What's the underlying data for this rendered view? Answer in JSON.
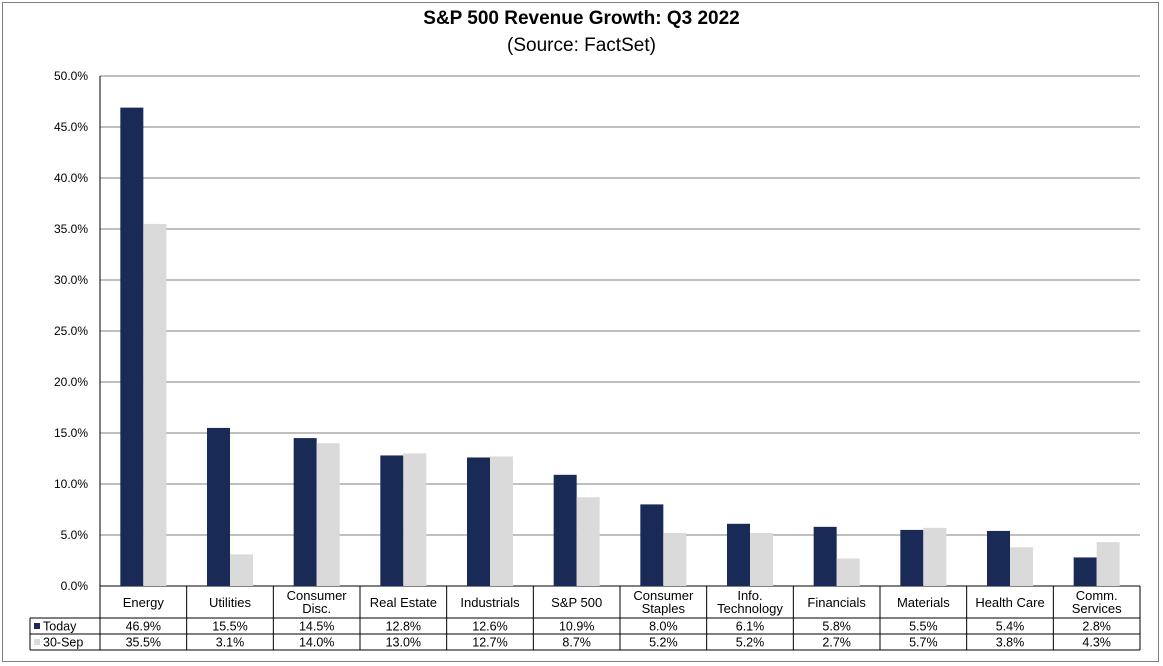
{
  "chart_data": {
    "type": "bar",
    "title": "S&P 500 Revenue Growth: Q3 2022",
    "subtitle": "(Source: FactSet)",
    "categories": [
      [
        "Energy"
      ],
      [
        "Utilities"
      ],
      [
        "Consumer",
        "Disc."
      ],
      [
        "Real Estate"
      ],
      [
        "Industrials"
      ],
      [
        "S&P 500"
      ],
      [
        "Consumer",
        "Staples"
      ],
      [
        "Info.",
        "Technology"
      ],
      [
        "Financials"
      ],
      [
        "Materials"
      ],
      [
        "Health Care"
      ],
      [
        "Comm.",
        "Services"
      ]
    ],
    "series": [
      {
        "name": "Today",
        "color": "#1a2a57",
        "values": [
          46.9,
          15.5,
          14.5,
          12.8,
          12.6,
          10.9,
          8.0,
          6.1,
          5.8,
          5.5,
          5.4,
          2.8
        ],
        "labels": [
          "46.9%",
          "15.5%",
          "14.5%",
          "12.8%",
          "12.6%",
          "10.9%",
          "8.0%",
          "6.1%",
          "5.8%",
          "5.5%",
          "5.4%",
          "2.8%"
        ]
      },
      {
        "name": "30-Sep",
        "color": "#dadada",
        "values": [
          35.5,
          3.1,
          14.0,
          13.0,
          12.7,
          8.7,
          5.2,
          5.2,
          2.7,
          5.7,
          3.8,
          4.3
        ],
        "labels": [
          "35.5%",
          "3.1%",
          "14.0%",
          "13.0%",
          "12.7%",
          "8.7%",
          "5.2%",
          "5.2%",
          "2.7%",
          "5.7%",
          "3.8%",
          "4.3%"
        ]
      }
    ],
    "ylim": [
      0,
      50
    ],
    "yticks": [
      "0.0%",
      "5.0%",
      "10.0%",
      "15.0%",
      "20.0%",
      "25.0%",
      "30.0%",
      "35.0%",
      "40.0%",
      "45.0%",
      "50.0%"
    ],
    "grid": true,
    "legend": "data-table"
  }
}
